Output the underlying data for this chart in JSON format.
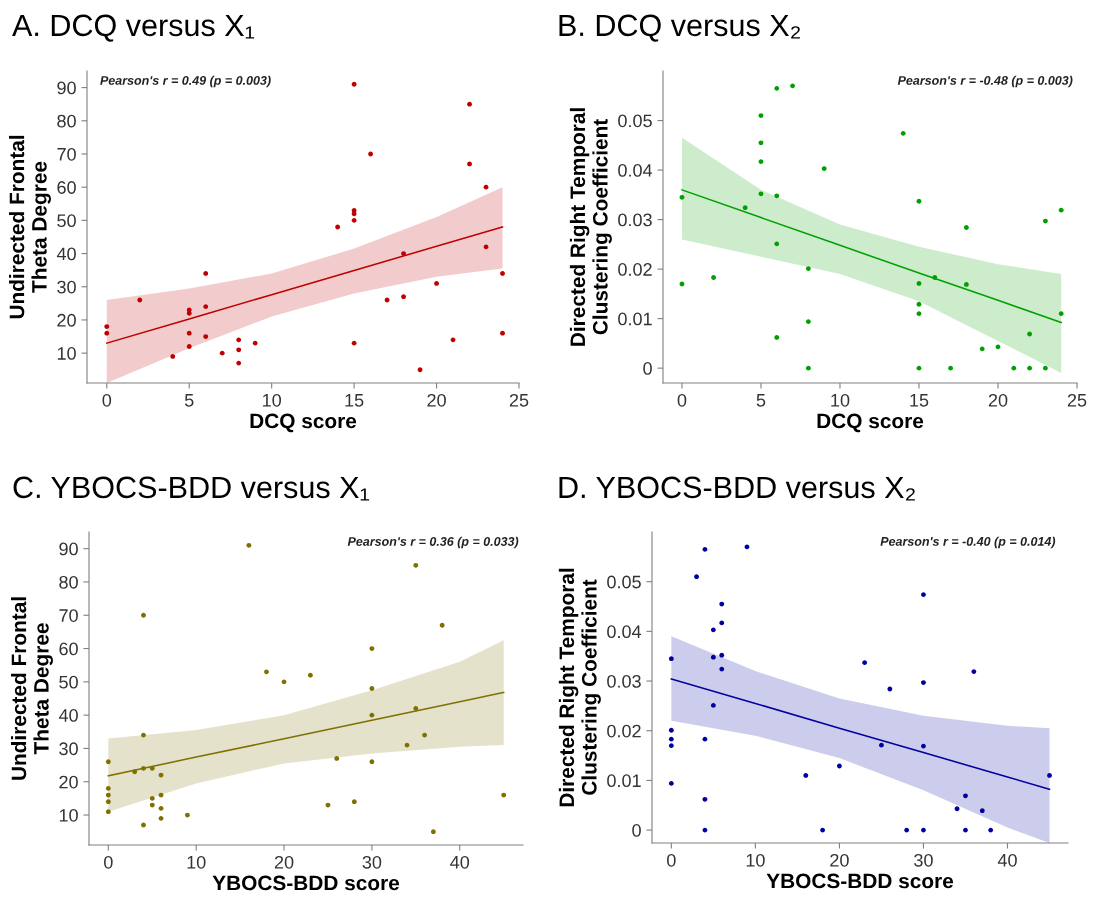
{
  "chart_data": [
    {
      "type": "scatter",
      "title": "A. DCQ versus X₁",
      "xlabel": "DCQ score",
      "ylabel": "Undirected Frontal\nTheta Degree",
      "annotations": [
        "Pearson's r = 0.49 (p = 0.003)"
      ],
      "xlim": [
        -1.2,
        25
      ],
      "ylim": [
        1,
        95
      ],
      "xticks": [
        0,
        5,
        10,
        15,
        20,
        25
      ],
      "yticks": [
        10,
        20,
        30,
        40,
        50,
        60,
        70,
        80,
        90
      ],
      "grid": false,
      "legend": false,
      "series": [
        {
          "marker": "circle",
          "color": "#c00000",
          "x": [
            0,
            0,
            2,
            4,
            5,
            5,
            5,
            5,
            6,
            6,
            6,
            7,
            8,
            8,
            8,
            9,
            14,
            15,
            15,
            15,
            15,
            15,
            16,
            17,
            18,
            18,
            19,
            20,
            21,
            22,
            22,
            23,
            23,
            24,
            24
          ],
          "values": [
            18,
            16,
            26,
            9,
            23,
            22,
            16,
            12,
            34,
            24,
            15,
            10,
            14,
            11,
            7,
            13,
            48,
            91,
            53,
            52,
            50,
            13,
            70,
            26,
            40,
            27,
            5,
            31,
            14,
            85,
            67,
            60,
            42,
            34,
            16
          ]
        },
        {
          "type": "line",
          "color": "#c00000",
          "line_style": "solid",
          "x": [
            0,
            5,
            10,
            15,
            20,
            24
          ],
          "values": [
            13,
            20.3,
            27.6,
            34.9,
            42.2,
            48
          ],
          "lower": [
            1,
            11.5,
            21,
            28,
            33,
            35.5
          ],
          "upper": [
            26,
            29.5,
            34,
            41.5,
            51,
            60
          ]
        }
      ]
    },
    {
      "type": "scatter",
      "title": "B. DCQ versus X₂",
      "xlabel": "DCQ score",
      "ylabel": "Directed Right Temporal\nClustering Coefficient",
      "annotations": [
        "Pearson's r = -0.48 (p = 0.003)"
      ],
      "xlim": [
        -1.2,
        25
      ],
      "ylim": [
        -0.003,
        0.06
      ],
      "xticks": [
        0,
        5,
        10,
        15,
        20,
        25
      ],
      "yticks": [
        0,
        0.01,
        0.02,
        0.03,
        0.04,
        0.05
      ],
      "grid": false,
      "legend": false,
      "series": [
        {
          "marker": "circle",
          "color": "#00a000",
          "x": [
            0,
            0,
            2,
            4,
            5,
            5,
            5,
            5,
            6,
            6,
            6,
            6,
            7,
            8,
            8,
            8,
            9,
            14,
            15,
            15,
            15,
            15,
            15,
            16,
            17,
            18,
            18,
            19,
            20,
            21,
            22,
            22,
            23,
            23,
            24,
            24
          ],
          "values": [
            0.0345,
            0.017,
            0.0183,
            0.0324,
            0.051,
            0.0455,
            0.0417,
            0.0352,
            0.0565,
            0.0348,
            0.0251,
            0.0062,
            0.057,
            0.0201,
            0.0094,
            0,
            0.0403,
            0.0474,
            0.0337,
            0.0171,
            0.0129,
            0.011,
            0,
            0.0183,
            0,
            0.0284,
            0.0169,
            0.0039,
            0.0043,
            0,
            0.0069,
            0,
            0.0297,
            0,
            0.0319,
            0.011
          ]
        },
        {
          "type": "line",
          "color": "#00a000",
          "line_style": "solid",
          "x": [
            0,
            5,
            10,
            15,
            20,
            24
          ],
          "values": [
            0.036,
            0.0304,
            0.0248,
            0.0192,
            0.0137,
            0.0092
          ],
          "lower": [
            0.026,
            0.0225,
            0.019,
            0.0135,
            0.0055,
            -0.001
          ],
          "upper": [
            0.0465,
            0.036,
            0.029,
            0.0245,
            0.021,
            0.019
          ]
        }
      ]
    },
    {
      "type": "scatter",
      "title": "C. YBOCS-BDD versus X₁",
      "xlabel": "YBOCS-BDD score",
      "ylabel": "Undirected Frontal\nTheta Degree",
      "annotations": [
        "Pearson's r = 0.36 (p = 0.033)"
      ],
      "xlim": [
        -2.2,
        47.2
      ],
      "ylim": [
        1,
        95
      ],
      "xticks": [
        0,
        10,
        20,
        30,
        40
      ],
      "yticks": [
        10,
        20,
        30,
        40,
        50,
        60,
        70,
        80,
        90
      ],
      "grid": false,
      "legend": false,
      "series": [
        {
          "marker": "circle",
          "color": "#7f7000",
          "x": [
            0,
            0,
            0,
            0,
            0,
            3,
            4,
            4,
            4,
            4,
            5,
            5,
            5,
            6,
            6,
            6,
            6,
            9,
            16,
            18,
            20,
            23,
            25,
            26,
            28,
            30,
            30,
            30,
            30,
            34,
            35,
            35,
            36,
            37,
            38,
            45
          ],
          "values": [
            26,
            18,
            16,
            14,
            11,
            23,
            70,
            34,
            24,
            7,
            24,
            15,
            13,
            22,
            16,
            12,
            9,
            10,
            91,
            53,
            50,
            52,
            13,
            27,
            14,
            60,
            48,
            40,
            26,
            31,
            85,
            42,
            34,
            5,
            67,
            16
          ]
        },
        {
          "type": "line",
          "color": "#7f7000",
          "line_style": "solid",
          "x": [
            0,
            10,
            20,
            30,
            40,
            45
          ],
          "values": [
            21.8,
            27.4,
            32.9,
            38.5,
            44,
            46.8
          ],
          "lower": [
            11,
            19.5,
            25.5,
            28.5,
            30.5,
            31
          ],
          "upper": [
            33,
            35.5,
            40,
            47.5,
            56,
            62.5
          ]
        }
      ]
    },
    {
      "type": "scatter",
      "title": "D. YBOCS-BDD versus X₂",
      "xlabel": "YBOCS-BDD score",
      "ylabel": "Directed Right Temporal\nClustering Coefficient",
      "annotations": [
        "Pearson's r = -0.40 (p = 0.014)"
      ],
      "xlim": [
        -2.3,
        47.2
      ],
      "ylim": [
        -0.0026,
        0.06
      ],
      "xticks": [
        0,
        10,
        20,
        30,
        40
      ],
      "yticks": [
        0,
        0.01,
        0.02,
        0.03,
        0.04,
        0.05
      ],
      "grid": false,
      "legend": false,
      "series": [
        {
          "marker": "circle",
          "color": "#0000a0",
          "x": [
            0,
            0,
            0,
            0,
            0,
            3,
            4,
            4,
            4,
            4,
            5,
            5,
            5,
            6,
            6,
            6,
            6,
            9,
            16,
            18,
            20,
            23,
            25,
            26,
            28,
            30,
            30,
            30,
            30,
            34,
            35,
            35,
            36,
            37,
            38,
            45
          ],
          "values": [
            0.0345,
            0.0201,
            0.0183,
            0.017,
            0.0094,
            0.051,
            0.0565,
            0.0183,
            0.0062,
            0,
            0.0403,
            0.0348,
            0.0251,
            0.0455,
            0.0417,
            0.0352,
            0.0324,
            0.057,
            0.011,
            0,
            0.0129,
            0.0337,
            0.0171,
            0.0284,
            0,
            0.0474,
            0.0297,
            0.0169,
            0,
            0.0043,
            0.0069,
            0,
            0.0319,
            0.0039,
            0,
            0.011
          ]
        },
        {
          "type": "line",
          "color": "#0000a0",
          "line_style": "solid",
          "x": [
            0,
            10,
            20,
            30,
            40,
            45
          ],
          "values": [
            0.0304,
            0.0255,
            0.0205,
            0.0156,
            0.0107,
            0.0082
          ],
          "lower": [
            0.022,
            0.019,
            0.0145,
            0.008,
            0.0005,
            -0.0026
          ],
          "upper": [
            0.039,
            0.032,
            0.0265,
            0.023,
            0.021,
            0.0205
          ]
        }
      ]
    }
  ]
}
